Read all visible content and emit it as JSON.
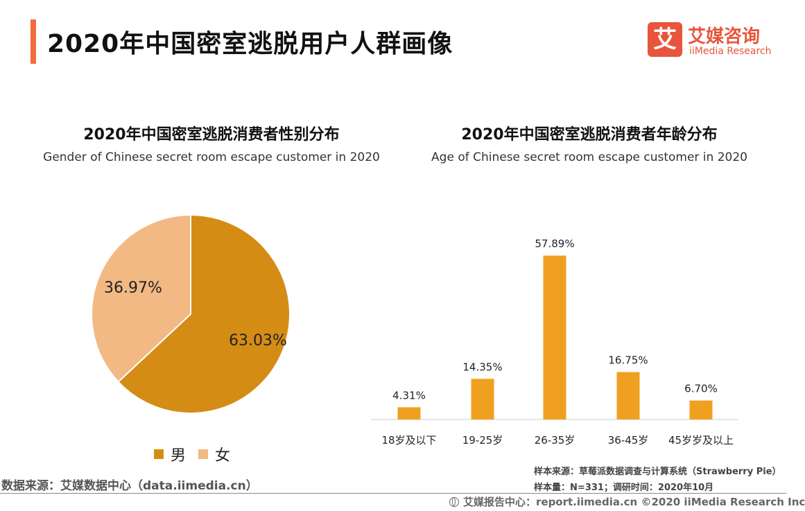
{
  "header": {
    "title": "2020年中国密室逃脱用户人群画像"
  },
  "logo": {
    "mark": "艾",
    "cn": "艾媒咨询",
    "en": "iiMedia Research",
    "color": "#e8553c"
  },
  "chart_data": [
    {
      "type": "pie",
      "title": "2020年中国密室逃脱消费者性别分布",
      "subtitle": "Gender of Chinese secret room escape customer in 2020",
      "categories": [
        "男",
        "女"
      ],
      "values": [
        63.03,
        36.97
      ],
      "labels": [
        "63.03%",
        "36.97%"
      ],
      "colors": [
        "#d48c15",
        "#f2b985"
      ],
      "legend": "bottom"
    },
    {
      "type": "bar",
      "title": "2020年中国密室逃脱消费者年龄分布",
      "subtitle": "Age of Chinese secret room escape customer in 2020",
      "categories": [
        "18岁及以下",
        "19-25岁",
        "26-35岁",
        "36-45岁",
        "45岁岁及以上"
      ],
      "values": [
        4.31,
        14.35,
        57.89,
        16.75,
        6.7
      ],
      "labels": [
        "4.31%",
        "14.35%",
        "57.89%",
        "16.75%",
        "6.70%"
      ],
      "color": "#f0a020",
      "ylim": [
        0,
        60
      ],
      "grid": false
    }
  ],
  "notes": {
    "source_sample": "样本来源：草莓派数据调查与计算系统（Strawberry Pie）",
    "sample_size": "样本量：N=331；调研时间：2020年10月"
  },
  "footer": {
    "data_source": "数据来源：艾媒数据中心（data.iimedia.cn）",
    "report_center": "艾媒报告中心：report.iimedia.cn  ©2020  iiMedia Research  Inc"
  }
}
